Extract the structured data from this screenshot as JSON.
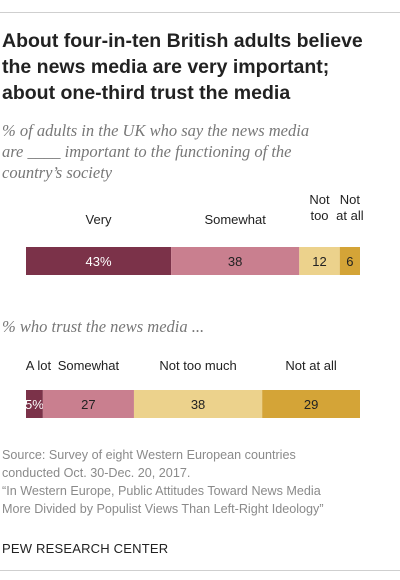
{
  "title_lines": [
    "About four-in-ten British adults believe",
    "the news media are very important;",
    "about one-third trust the media"
  ],
  "chart_data": [
    {
      "type": "bar",
      "orientation": "horizontal",
      "stacked": true,
      "subtitle_lines": [
        "% of adults in the UK who say the news media",
        "are ____ important to the functioning of the",
        "country’s society"
      ],
      "categories": [
        ""
      ],
      "series": [
        {
          "name": "Very",
          "values": [
            43
          ],
          "label": "43%",
          "color": "#7b3249",
          "text_color": "#ffffff"
        },
        {
          "name": "Somewhat",
          "values": [
            38
          ],
          "label": "38",
          "color": "#c97f8f",
          "text_color": "#222222"
        },
        {
          "name": "Not too",
          "values": [
            12
          ],
          "label": "12",
          "color": "#ecd28c",
          "text_color": "#222222"
        },
        {
          "name": "Not at all",
          "values": [
            6
          ],
          "label": "6",
          "color": "#d4a437",
          "text_color": "#222222"
        }
      ]
    },
    {
      "type": "bar",
      "orientation": "horizontal",
      "stacked": true,
      "subtitle_lines": [
        "% who trust the news media ..."
      ],
      "categories": [
        ""
      ],
      "series": [
        {
          "name": "A lot",
          "values": [
            5
          ],
          "label": "5%",
          "color": "#7b3249",
          "text_color": "#ffffff"
        },
        {
          "name": "Somewhat",
          "values": [
            27
          ],
          "label": "27",
          "color": "#c97f8f",
          "text_color": "#222222"
        },
        {
          "name": "Not too much",
          "values": [
            38
          ],
          "label": "38",
          "color": "#ecd28c",
          "text_color": "#222222"
        },
        {
          "name": "Not at all",
          "values": [
            29
          ],
          "label": "29",
          "color": "#d4a437",
          "text_color": "#222222"
        }
      ]
    }
  ],
  "source_lines": [
    "Source: Survey of eight Western European countries",
    "conducted Oct. 30-Dec. 20, 2017.",
    "“In Western Europe, Public Attitudes Toward News Media",
    "More Divided by Populist Views Than Left-Right Ideology”"
  ],
  "brand": "PEW RESEARCH CENTER"
}
